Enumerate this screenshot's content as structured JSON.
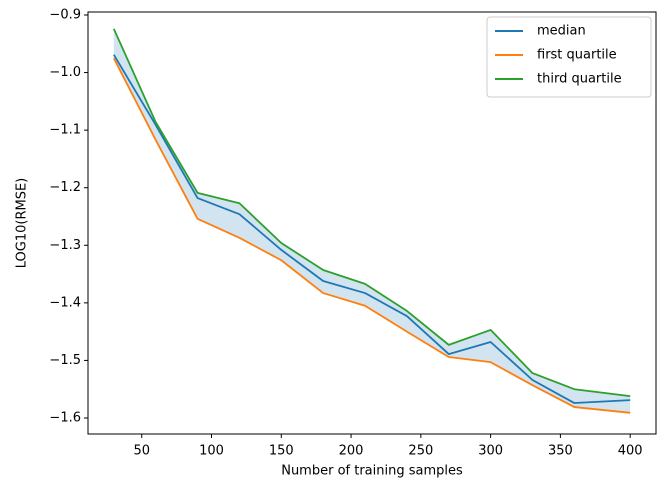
{
  "chart_data": {
    "type": "line",
    "xlabel": "Number of training samples",
    "ylabel": "LOG10(RMSE)",
    "x": [
      30,
      60,
      90,
      120,
      150,
      180,
      210,
      240,
      270,
      300,
      330,
      360,
      400
    ],
    "series": [
      {
        "name": "median",
        "color": "#1f77b4",
        "values": [
          -0.969,
          -1.091,
          -1.218,
          -1.246,
          -1.308,
          -1.362,
          -1.383,
          -1.423,
          -1.489,
          -1.468,
          -1.534,
          -1.574,
          -1.569
        ]
      },
      {
        "name": "first quartile",
        "color": "#ff7f0e",
        "values": [
          -0.975,
          -1.117,
          -1.254,
          -1.287,
          -1.326,
          -1.383,
          -1.405,
          -1.45,
          -1.494,
          -1.503,
          -1.543,
          -1.581,
          -1.591
        ]
      },
      {
        "name": "third quartile",
        "color": "#2ca02c",
        "values": [
          -0.924,
          -1.086,
          -1.209,
          -1.227,
          -1.296,
          -1.343,
          -1.367,
          -1.414,
          -1.473,
          -1.447,
          -1.522,
          -1.55,
          -1.562
        ]
      }
    ],
    "fill_between": {
      "series": [
        "first quartile",
        "third quartile"
      ],
      "color": "#1f77b4",
      "opacity": 0.2
    },
    "xlim": [
      11.5,
      418.5
    ],
    "ylim": [
      -1.6278,
      -0.8948
    ],
    "xticks": [
      50,
      100,
      150,
      200,
      250,
      300,
      350,
      400
    ],
    "yticks": [
      {
        "value": -0.9,
        "label": "−0.9"
      },
      {
        "value": -1.0,
        "label": "−1.0"
      },
      {
        "value": -1.1,
        "label": "−1.1"
      },
      {
        "value": -1.2,
        "label": "−1.2"
      },
      {
        "value": -1.3,
        "label": "−1.3"
      },
      {
        "value": -1.4,
        "label": "−1.4"
      },
      {
        "value": -1.5,
        "label": "−1.5"
      },
      {
        "value": -1.6,
        "label": "−1.6"
      }
    ],
    "legend": "upper right",
    "grid": false
  }
}
